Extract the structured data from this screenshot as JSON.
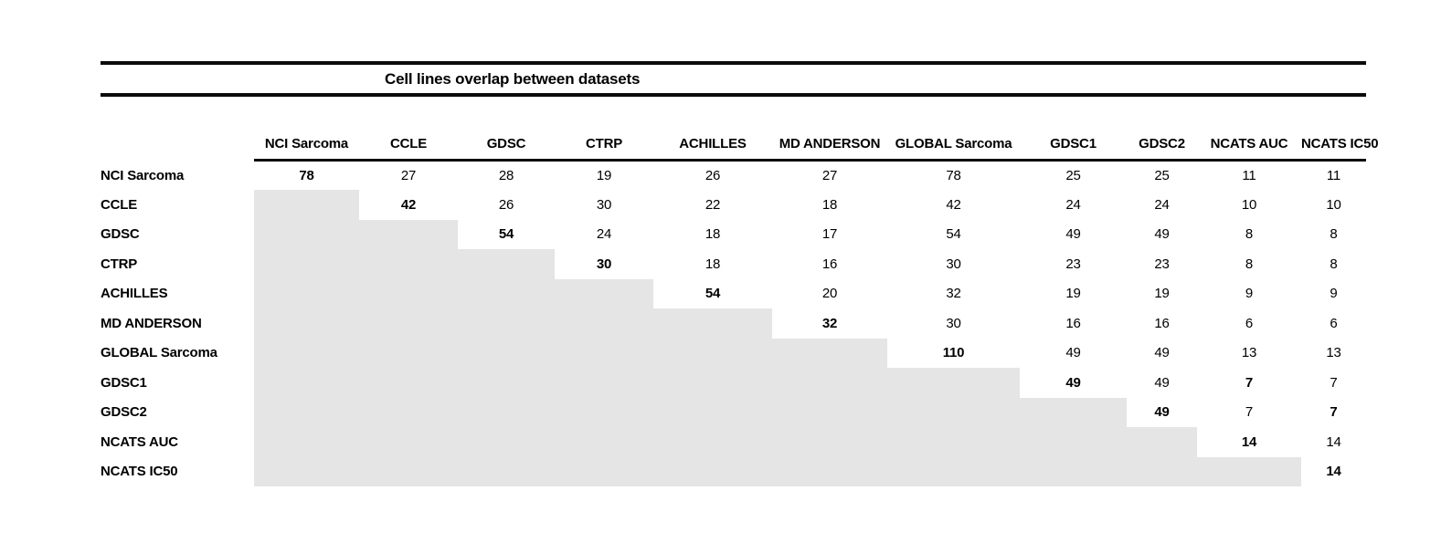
{
  "title": "Cell lines overlap between datasets",
  "colors": {
    "rule": "#0b0b0b",
    "shade": "#e6e5e5",
    "text": "#000000"
  },
  "chart_data": {
    "type": "table",
    "title": "Cell lines overlap between datasets",
    "col_labels": [
      "NCI Sarcoma",
      "CCLE",
      "GDSC",
      "CTRP",
      "ACHILLES",
      "MD ANDERSON",
      "GLOBAL Sarcoma",
      "GDSC1",
      "GDSC2",
      "NCATS AUC",
      "NCATS IC50"
    ],
    "row_labels": [
      "NCI Sarcoma",
      "CCLE",
      "GDSC",
      "CTRP",
      "ACHILLES",
      "MD ANDERSON",
      "GLOBAL Sarcoma",
      "GDSC1",
      "GDSC2",
      "NCATS AUC",
      "NCATS IC50"
    ],
    "matrix": [
      [
        78,
        27,
        28,
        19,
        26,
        27,
        78,
        25,
        25,
        11,
        11
      ],
      [
        null,
        42,
        26,
        30,
        22,
        18,
        42,
        24,
        24,
        10,
        10
      ],
      [
        null,
        null,
        54,
        24,
        18,
        17,
        54,
        49,
        49,
        8,
        8
      ],
      [
        null,
        null,
        null,
        30,
        18,
        16,
        30,
        23,
        23,
        8,
        8
      ],
      [
        null,
        null,
        null,
        null,
        54,
        20,
        32,
        19,
        19,
        9,
        9
      ],
      [
        null,
        null,
        null,
        null,
        null,
        32,
        30,
        16,
        16,
        6,
        6
      ],
      [
        null,
        null,
        null,
        null,
        null,
        null,
        110,
        49,
        49,
        13,
        13
      ],
      [
        null,
        null,
        null,
        null,
        null,
        null,
        null,
        49,
        49,
        7,
        7
      ],
      [
        null,
        null,
        null,
        null,
        null,
        null,
        null,
        null,
        49,
        7,
        7
      ],
      [
        null,
        null,
        null,
        null,
        null,
        null,
        null,
        null,
        null,
        14,
        14
      ],
      [
        null,
        null,
        null,
        null,
        null,
        null,
        null,
        null,
        null,
        null,
        14
      ]
    ],
    "bold_cells": [
      [
        0,
        0
      ],
      [
        1,
        1
      ],
      [
        2,
        2
      ],
      [
        3,
        3
      ],
      [
        4,
        4
      ],
      [
        5,
        5
      ],
      [
        6,
        6
      ],
      [
        7,
        7
      ],
      [
        8,
        8
      ],
      [
        9,
        9
      ],
      [
        10,
        10
      ],
      [
        7,
        9
      ],
      [
        8,
        10
      ]
    ],
    "shaded_lower_triangle": true,
    "shade_color": "#e6e5e5",
    "grid": false,
    "legend": false
  }
}
